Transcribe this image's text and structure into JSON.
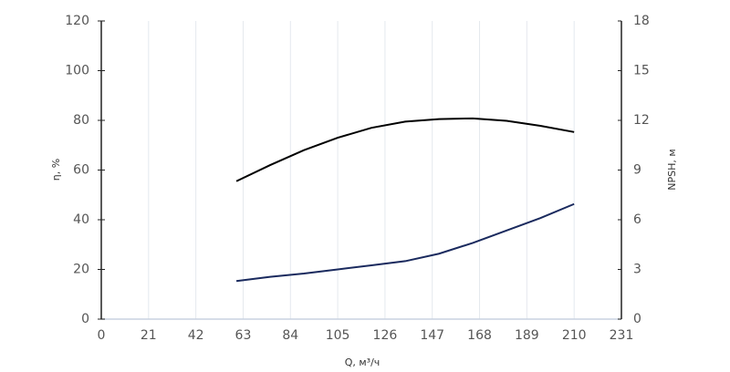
{
  "chart_data": {
    "type": "line",
    "xlabel": "Q, м³/ч",
    "ylabel": "η, %",
    "y2label": "NPSH, м",
    "x": [
      60,
      75,
      90,
      105,
      120,
      135,
      150,
      165,
      180,
      195,
      210
    ],
    "series": [
      {
        "name": "η",
        "color": "#000000",
        "values": [
          55.5,
          62,
          68,
          73,
          77,
          79.5,
          80.5,
          80.8,
          79.8,
          77.8,
          75.3
        ]
      },
      {
        "name": "NPSH",
        "color": "#1a2a5e",
        "axis": "y2",
        "values": [
          2.3,
          2.55,
          2.75,
          3.0,
          3.25,
          3.5,
          3.95,
          4.6,
          5.35,
          6.1,
          6.95
        ]
      }
    ],
    "xlim": [
      0,
      231
    ],
    "xticks": [
      0,
      21,
      42,
      63,
      84,
      105,
      126,
      147,
      168,
      189,
      210,
      231
    ],
    "ylim": [
      0,
      120
    ],
    "yticks": [
      0,
      20,
      40,
      60,
      80,
      100,
      120
    ],
    "y2lim": [
      0,
      18
    ],
    "y2ticks": [
      0,
      3,
      6,
      9,
      12,
      15,
      18
    ],
    "grid": true
  }
}
